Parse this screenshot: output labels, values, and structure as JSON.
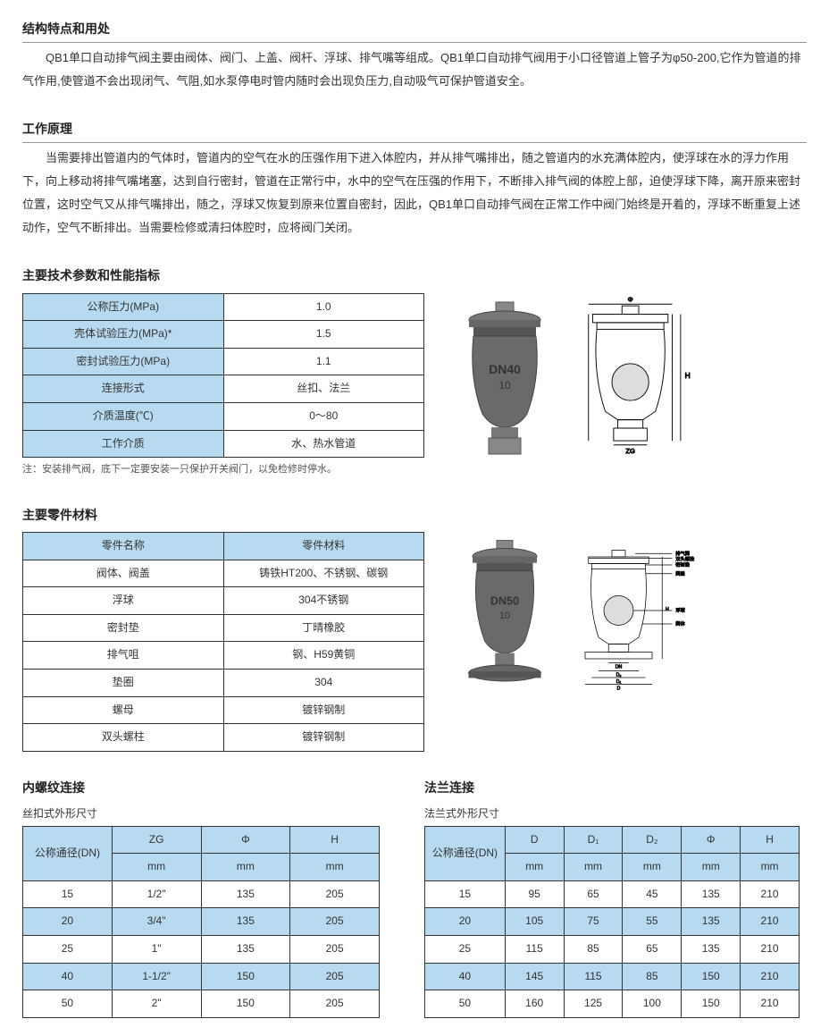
{
  "colors": {
    "header_blue": "#b8daf0",
    "border": "#333333",
    "text": "#333333",
    "bg": "#ffffff"
  },
  "sec1": {
    "title": "结构特点和用处",
    "text": "QB1单口自动排气阀主要由阀体、阀门、上盖、阀杆、浮球、排气嘴等组成。QB1单口自动排气阀用于小口径管道上管子为φ50-200,它作为管道的排气作用,使管道不会出现闭气、气阻,如水泵停电时管内随时会出现负压力,自动吸气可保护管道安全。"
  },
  "sec2": {
    "title": "工作原理",
    "text": "当需要排出管道内的气体时，管道内的空气在水的压强作用下进入体腔内，并从排气嘴排出，随之管道内的水充满体腔内，使浮球在水的浮力作用下，向上移动将排气嘴堵塞，达到自行密封，管道在正常行中，水中的空气在压强的作用下，不断排入排气阀的体腔上部，迫使浮球下降，离开原来密封位置，这时空气又从排气嘴排出，随之，浮球又恢复到原来位置自密封，因此，QB1单口自动排气阀在正常工作中阀门始终是开着的，浮球不断重复上述动作，空气不断排出。当需要检修或清扫体腔时，应将阀门关闭。"
  },
  "sec3": {
    "title": "主要技术参数和性能指标",
    "rows": [
      [
        "公称压力(MPa)",
        "1.0"
      ],
      [
        "壳体试验压力(MPa)*",
        "1.5"
      ],
      [
        "密封试验压力(MPa)",
        "1.1"
      ],
      [
        "连接形式",
        "丝扣、法兰"
      ],
      [
        "介质温度(℃)",
        "0～80"
      ],
      [
        "工作介质",
        "水、热水管道"
      ]
    ],
    "note": "注：安装排气阀，底下一定要安装一只保护开关阀门，以免检修时停水。"
  },
  "sec4": {
    "title": "主要零件材料",
    "header": [
      "零件名称",
      "零件材料"
    ],
    "rows": [
      [
        "阀体、阀盖",
        "铸铁HT200、不锈钢、碳钢"
      ],
      [
        "浮球",
        "304不锈钢"
      ],
      [
        "密封垫",
        "丁晴橡胶"
      ],
      [
        "排气咀",
        "钢、H59黄铜"
      ],
      [
        "垫圈",
        "304"
      ],
      [
        "螺母",
        "镀锌钢制"
      ],
      [
        "双头螺柱",
        "镀锌钢制"
      ]
    ]
  },
  "sec5": {
    "title": "内螺纹连接",
    "subtitle": "丝扣式外形尺寸",
    "header_top": [
      "公称通径(DN)",
      "ZG",
      "Φ",
      "H"
    ],
    "header_unit": [
      "mm",
      "mm",
      "mm"
    ],
    "rows": [
      [
        "15",
        "1/2\"",
        "135",
        "205"
      ],
      [
        "20",
        "3/4\"",
        "135",
        "205"
      ],
      [
        "25",
        "1\"",
        "135",
        "205"
      ],
      [
        "40",
        "1-1/2\"",
        "150",
        "205"
      ],
      [
        "50",
        "2\"",
        "150",
        "205"
      ]
    ]
  },
  "sec6": {
    "title": "法兰连接",
    "subtitle": "法兰式外形尺寸",
    "header_top": [
      "公称通径(DN)",
      "D",
      "D₁",
      "D₂",
      "Φ",
      "H"
    ],
    "header_unit": [
      "mm",
      "mm",
      "mm",
      "mm",
      "mm"
    ],
    "rows": [
      [
        "15",
        "95",
        "65",
        "45",
        "135",
        "210"
      ],
      [
        "20",
        "105",
        "75",
        "55",
        "135",
        "210"
      ],
      [
        "25",
        "115",
        "85",
        "65",
        "135",
        "210"
      ],
      [
        "40",
        "145",
        "115",
        "85",
        "150",
        "210"
      ],
      [
        "50",
        "160",
        "125",
        "100",
        "150",
        "210"
      ]
    ]
  },
  "diagram_labels": {
    "phi": "Φ",
    "h": "H",
    "zg": "ZG",
    "d": "D",
    "d1": "D₁",
    "d2": "D₂",
    "dn": "DN",
    "l1": "双头螺栓",
    "l2": "排气阀",
    "l3": "密封垫",
    "l4": "阀盖",
    "l5": "浮球",
    "l6": "阀体"
  }
}
